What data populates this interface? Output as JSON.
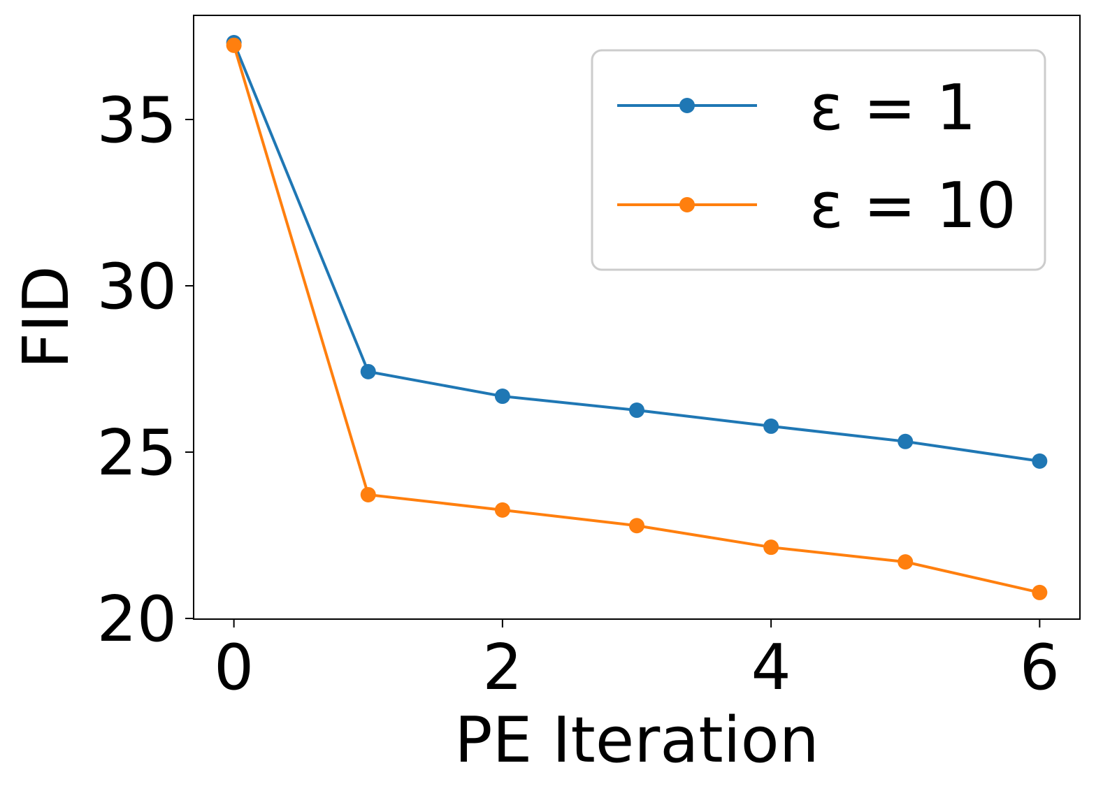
{
  "chart_data": {
    "type": "line",
    "title": "",
    "xlabel": "PE Iteration",
    "ylabel": "FID",
    "xlim": [
      -0.3,
      6.3
    ],
    "ylim": [
      19.98,
      38.13
    ],
    "xticks": [
      0,
      2,
      4,
      6
    ],
    "xtick_labels": [
      "0",
      "2",
      "4",
      "6"
    ],
    "yticks": [
      20,
      25,
      30,
      35
    ],
    "ytick_labels": [
      "20",
      "25",
      "30",
      "35"
    ],
    "grid": false,
    "legend_placement": "top-right",
    "x": [
      0,
      1,
      2,
      3,
      4,
      5,
      6
    ],
    "series": [
      {
        "name": "ε = 1",
        "color": "#1f77b4",
        "values": [
          37.31,
          27.42,
          26.68,
          26.26,
          25.78,
          25.32,
          24.73
        ]
      },
      {
        "name": "ε = 10",
        "color": "#ff7f0e",
        "values": [
          37.23,
          23.72,
          23.26,
          22.79,
          22.14,
          21.7,
          20.78
        ]
      }
    ]
  }
}
